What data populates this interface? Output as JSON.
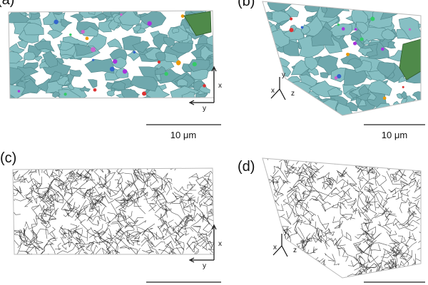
{
  "panels": [
    {
      "label": "(a)",
      "axes": [
        "x",
        "y"
      ],
      "scale": "10 μm"
    },
    {
      "label": "(b)",
      "axes": [
        "y",
        "x",
        "z"
      ],
      "scale": "10 μm"
    },
    {
      "label": "(c)",
      "axes": [
        "x",
        "y"
      ]
    },
    {
      "label": "(d)",
      "axes": [
        "y",
        "x",
        "z"
      ]
    }
  ]
}
